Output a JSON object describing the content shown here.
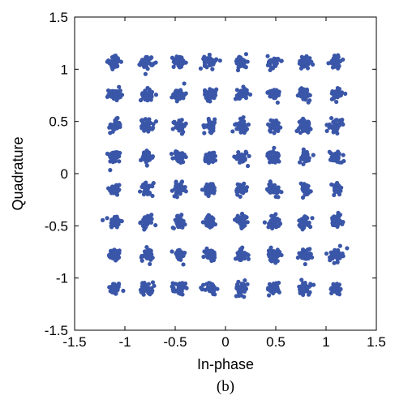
{
  "chart_data": {
    "type": "scatter",
    "xlabel": "In-phase",
    "ylabel": "Quadrature",
    "caption": "(b)",
    "xlim": [
      -1.5,
      1.5
    ],
    "ylim": [
      -1.5,
      1.5
    ],
    "xticks": [
      "-1.5",
      "-1",
      "-0.5",
      "0",
      "0.5",
      "1",
      "1.5"
    ],
    "yticks": [
      "-1.5",
      "-1",
      "-0.5",
      "0",
      "0.5",
      "1",
      "1.5"
    ],
    "grid": false,
    "legend": "none",
    "marker_color": "#3a56a8",
    "constellation": {
      "i_levels": [
        -1.1,
        -0.78,
        -0.46,
        -0.15,
        0.16,
        0.48,
        0.79,
        1.1
      ],
      "q_levels": [
        -1.1,
        -0.78,
        -0.46,
        -0.15,
        0.16,
        0.46,
        0.76,
        1.07
      ],
      "points_per_cluster": 40,
      "spread_sd": 0.03
    }
  }
}
